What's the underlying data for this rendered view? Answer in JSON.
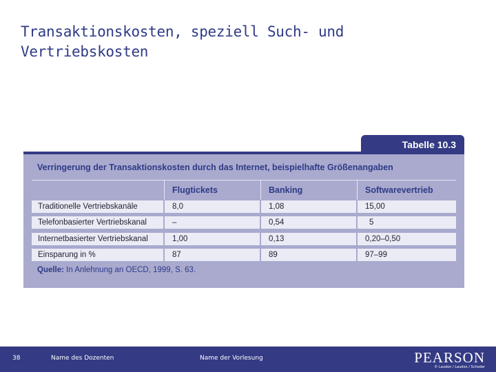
{
  "slide": {
    "title": "Transaktionskosten, speziell Such- und Vertriebskosten"
  },
  "table": {
    "tab_label": "Tabelle 10.3",
    "caption": "Verringerung der Transaktionskosten durch das Internet, beispielhafte Größenangaben",
    "headers": [
      "",
      "Flugtickets",
      "Banking",
      "Softwarevertrieb"
    ],
    "rows": [
      [
        "Traditionelle Vertriebskanäle",
        "8,0",
        "1,08",
        "15,00"
      ],
      [
        "Telefonbasierter Vertriebskanal",
        "–",
        "0,54",
        "5"
      ],
      [
        "Internetbasierter Vertriebskanal",
        "1,00",
        "0,13",
        "0,20–0,50"
      ],
      [
        "Einsparung in %",
        "87",
        "89",
        "97–99"
      ]
    ],
    "source_label": "Quelle:",
    "source_text": " In Anlehnung an OECD, 1999, S. 63."
  },
  "footer": {
    "page_number": "38",
    "lecturer": "Name des Dozenten",
    "lecture": "Name der Vorlesung",
    "logo": "PEARSON",
    "copyright": "© Laudon / Laudon / Schoder"
  },
  "colors": {
    "brand_blue": "#343a84",
    "title_blue": "#2f3a86",
    "panel": "#a9aace",
    "row": "#ebebf5"
  }
}
